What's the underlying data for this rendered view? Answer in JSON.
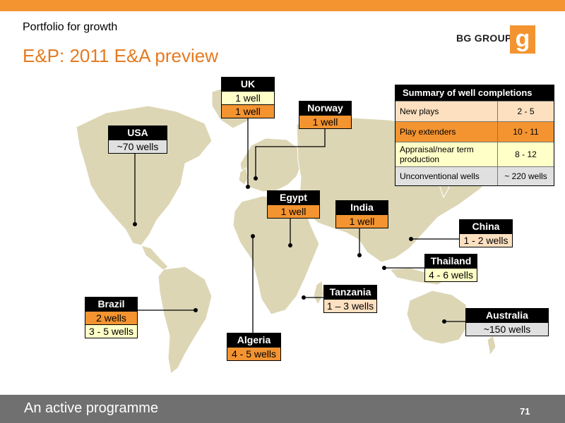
{
  "header": {
    "section": "Portfolio for growth",
    "title": "E&P: 2011 E&A preview",
    "brand": "BG GROUP",
    "brand_mark": "g"
  },
  "colors": {
    "accent": "#f39431",
    "title": "#e57a20",
    "footer": "#707070"
  },
  "labels": {
    "uk": {
      "name": "UK",
      "line1": "1 well",
      "line2": "1 well"
    },
    "usa": {
      "name": "USA",
      "line1": "~70 wells"
    },
    "norway": {
      "name": "Norway",
      "line1": "1 well"
    },
    "egypt": {
      "name": "Egypt",
      "line1": "1 well"
    },
    "india": {
      "name": "India",
      "line1": "1 well"
    },
    "china": {
      "name": "China",
      "line1": "1 - 2 wells"
    },
    "thailand": {
      "name": "Thailand",
      "line1": "4 - 6 wells"
    },
    "tanzania": {
      "name": "Tanzania",
      "line1": "1 – 3 wells"
    },
    "brazil": {
      "name": "Brazil",
      "line1": "2 wells",
      "line2": "3 - 5 wells"
    },
    "algeria": {
      "name": "Algeria",
      "line1": "4 - 5 wells"
    },
    "australia": {
      "name": "Australia",
      "line1": "~150 wells"
    }
  },
  "summary": {
    "title": "Summary of well completions",
    "rows": [
      {
        "label": "New plays",
        "value": "2 - 5",
        "color": "#fde0c0"
      },
      {
        "label": "Play extenders",
        "value": "10 - 11",
        "color": "#f39431"
      },
      {
        "label": "Appraisal/near term production",
        "value": "8 - 12",
        "color": "#ffffc8"
      },
      {
        "label": "Unconventional wells",
        "value": "~ 220 wells",
        "color": "#e0e0e0"
      }
    ]
  },
  "footer": {
    "tagline": "An active programme",
    "page": "71"
  }
}
